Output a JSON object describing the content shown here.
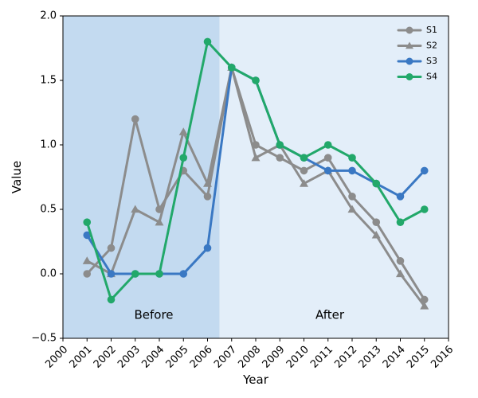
{
  "chart_data": {
    "type": "line",
    "title": "",
    "xlabel": "Year",
    "ylabel": "Value",
    "xlim": [
      2000,
      2016
    ],
    "ylim": [
      -0.5,
      2.0
    ],
    "x_ticks": [
      2000,
      2001,
      2002,
      2003,
      2004,
      2005,
      2006,
      2007,
      2008,
      2009,
      2010,
      2011,
      2012,
      2013,
      2014,
      2015,
      2016
    ],
    "y_ticks": [
      -0.5,
      0.0,
      0.5,
      1.0,
      1.5,
      2.0
    ],
    "x_tick_labels": [
      "2000",
      "2001",
      "2002",
      "2003",
      "2004",
      "2005",
      "2006",
      "2007",
      "2008",
      "2009",
      "2010",
      "2011",
      "2012",
      "2013",
      "2014",
      "2015",
      "2016"
    ],
    "y_tick_labels": [
      "−0.5",
      "0.0",
      "0.5",
      "1.0",
      "1.5",
      "2.0"
    ],
    "grid": false,
    "legend_position": "top-right",
    "x": [
      2001,
      2002,
      2003,
      2004,
      2005,
      2006,
      2007,
      2008,
      2009,
      2010,
      2011,
      2012,
      2013,
      2014,
      2015
    ],
    "regions": [
      {
        "label": "Before",
        "start": 2000,
        "end": 2006.5,
        "color": "#c3daf0"
      },
      {
        "label": "After",
        "start": 2006.5,
        "end": 2016,
        "color": "#e3eef9"
      }
    ],
    "series": [
      {
        "name": "S1",
        "color": "#8c8c8c",
        "marker": "circle",
        "values": [
          0.0,
          0.2,
          1.2,
          0.5,
          0.8,
          0.6,
          1.6,
          1.0,
          0.9,
          0.8,
          0.9,
          0.6,
          0.4,
          0.1,
          -0.2
        ]
      },
      {
        "name": "S2",
        "color": "#8c8c8c",
        "marker": "triangle",
        "values": [
          0.1,
          0.0,
          0.5,
          0.4,
          1.1,
          0.7,
          1.6,
          0.9,
          1.0,
          0.7,
          0.8,
          0.5,
          0.3,
          0.0,
          -0.25
        ]
      },
      {
        "name": "S3",
        "color": "#3a78c3",
        "marker": "circle",
        "values": [
          0.3,
          0.0,
          0.0,
          0.0,
          0.0,
          0.2,
          1.6,
          1.5,
          1.0,
          0.9,
          0.8,
          0.8,
          0.7,
          0.6,
          0.8
        ]
      },
      {
        "name": "S4",
        "color": "#22a86a",
        "marker": "circle",
        "values": [
          0.4,
          -0.2,
          0.0,
          0.0,
          0.9,
          1.8,
          1.6,
          1.5,
          1.0,
          0.9,
          1.0,
          0.9,
          0.7,
          0.4,
          0.5
        ]
      }
    ]
  }
}
